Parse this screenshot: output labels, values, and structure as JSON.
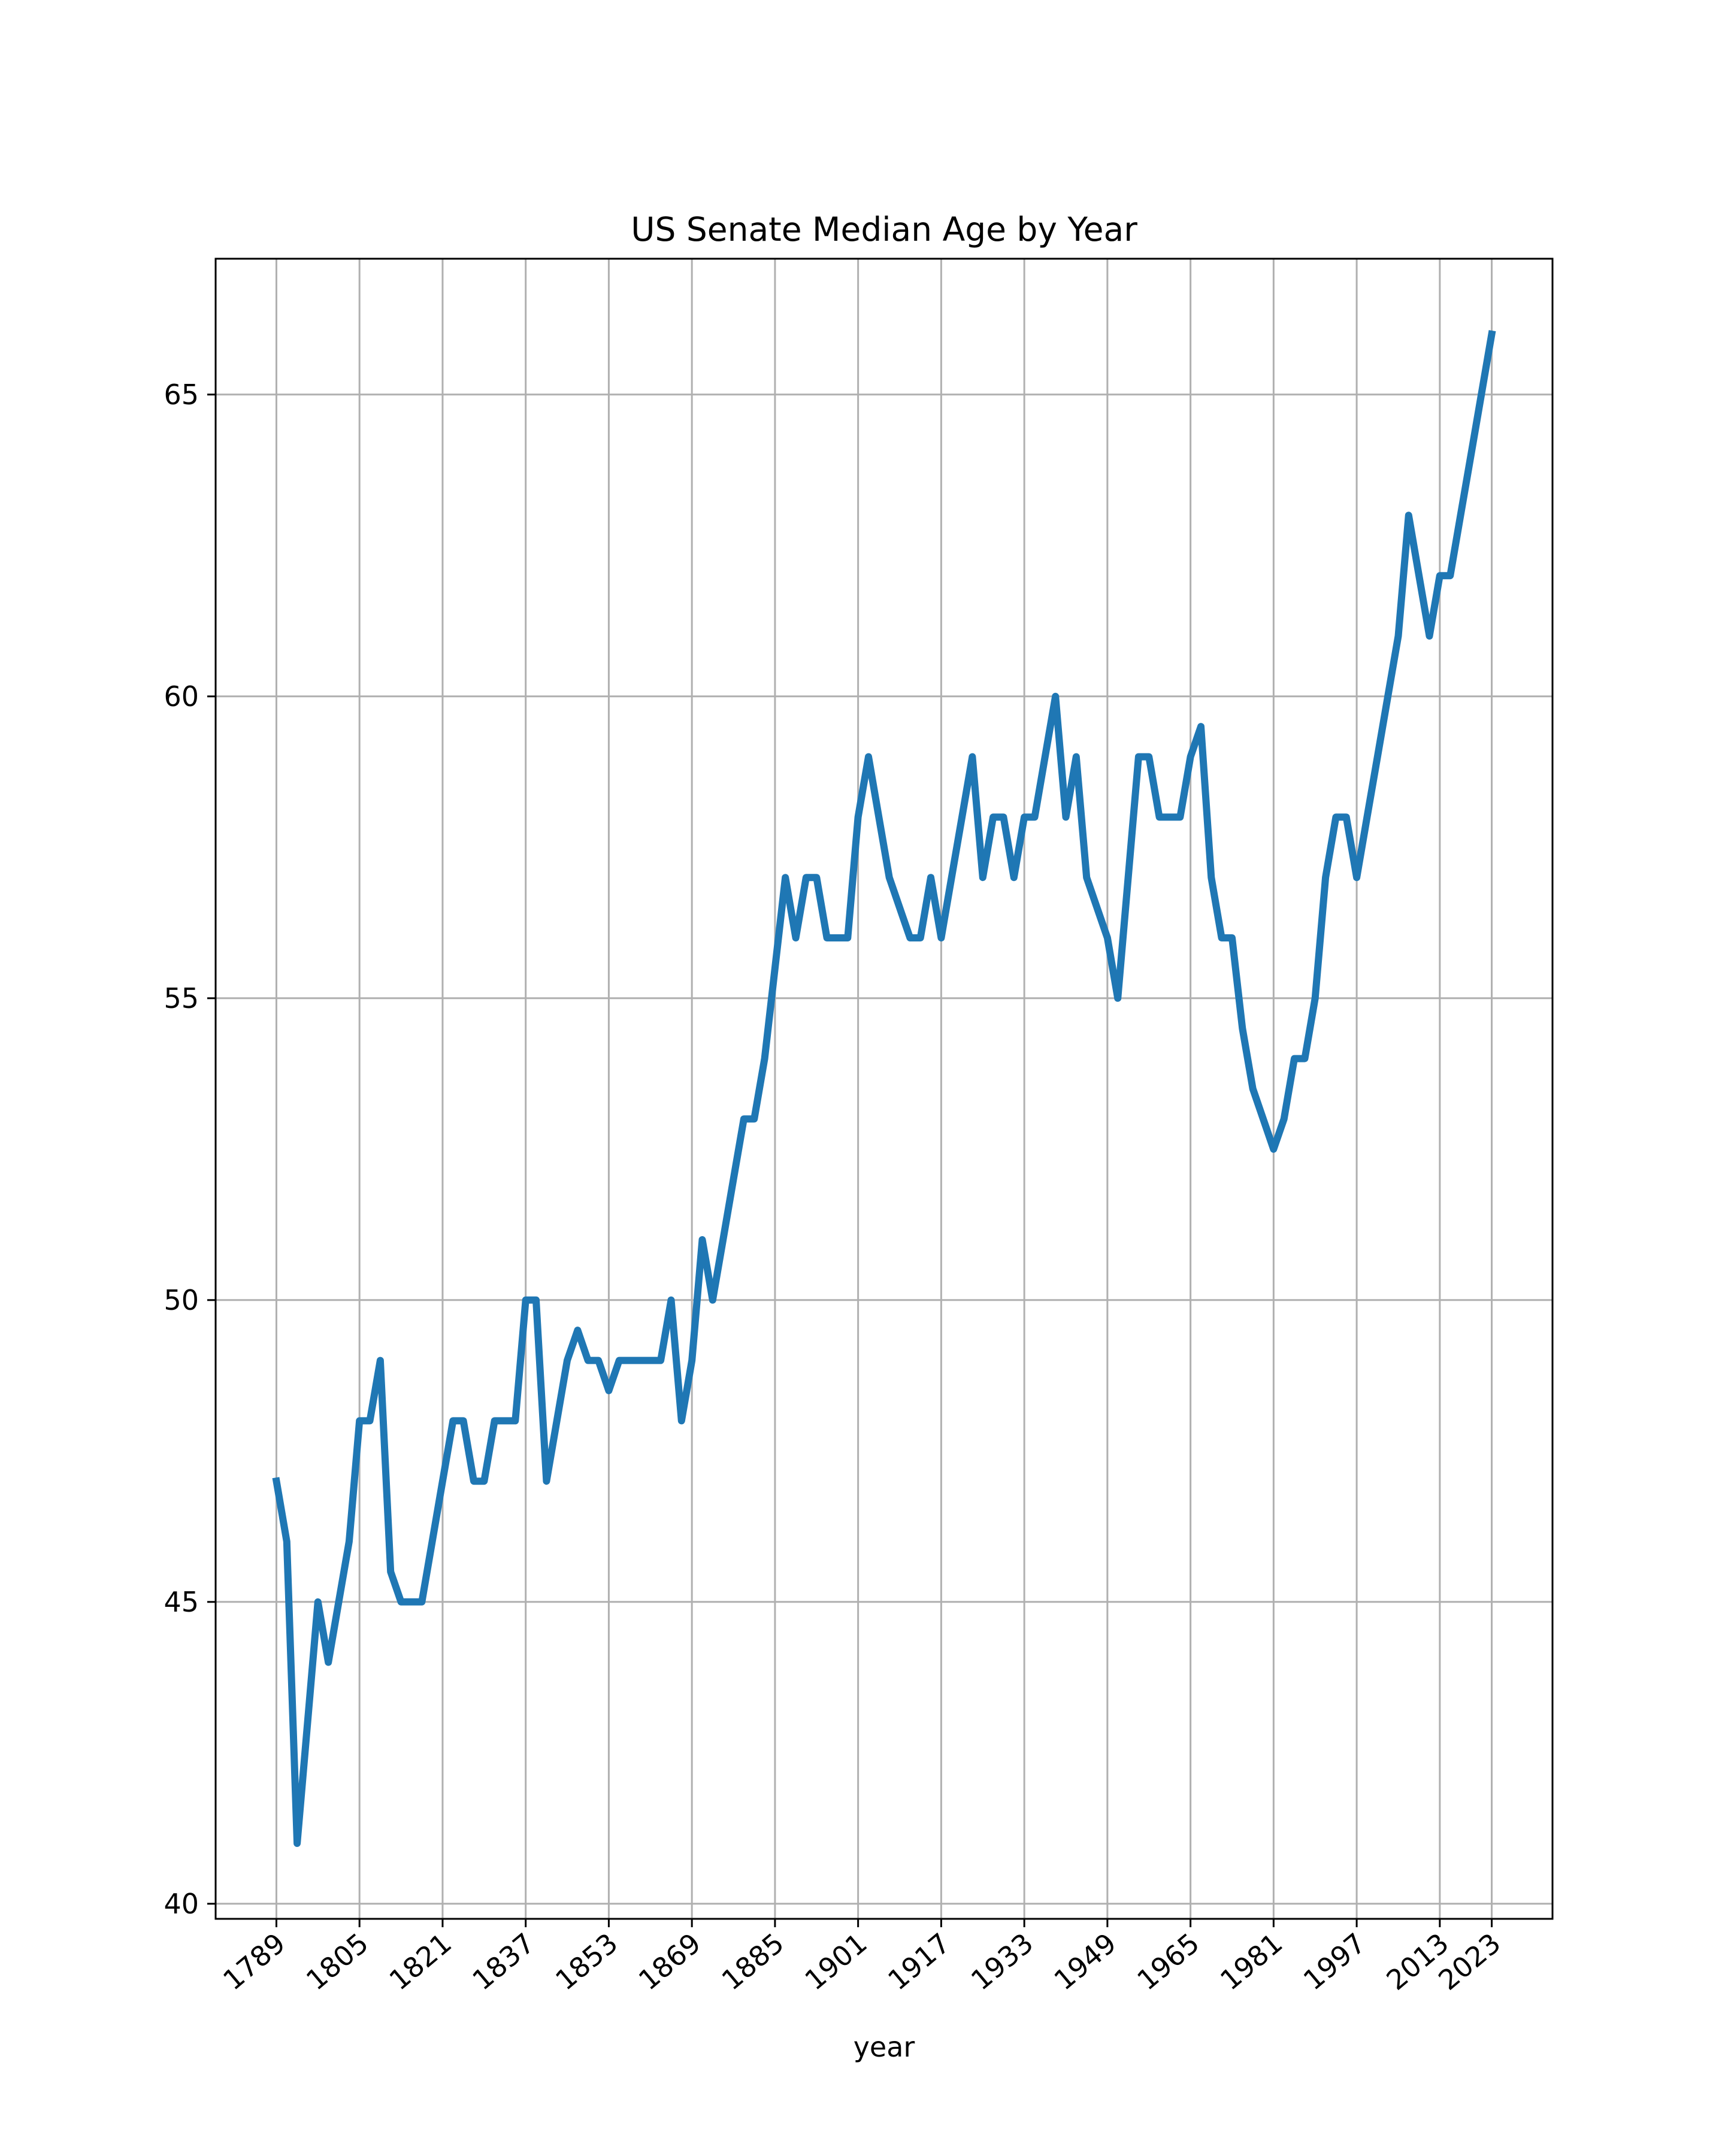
{
  "chart_data": {
    "type": "line",
    "title": "US Senate Median Age by Year",
    "xlabel": "year",
    "ylabel": "",
    "x_ticks": [
      1789,
      1805,
      1821,
      1837,
      1853,
      1869,
      1885,
      1901,
      1917,
      1933,
      1949,
      1965,
      1981,
      1997,
      2013,
      2023
    ],
    "y_ticks": [
      40,
      45,
      50,
      55,
      60,
      65
    ],
    "xlim": [
      1777.3,
      2034.7
    ],
    "ylim": [
      39.75,
      67.25
    ],
    "grid": true,
    "line_color": "#1f77b4",
    "series": [
      {
        "name": "",
        "x": [
          1789,
          1791,
          1793,
          1795,
          1797,
          1799,
          1801,
          1803,
          1805,
          1807,
          1809,
          1811,
          1813,
          1815,
          1817,
          1819,
          1821,
          1823,
          1825,
          1827,
          1829,
          1831,
          1833,
          1835,
          1837,
          1839,
          1841,
          1843,
          1845,
          1847,
          1849,
          1851,
          1853,
          1855,
          1857,
          1859,
          1861,
          1863,
          1865,
          1867,
          1869,
          1871,
          1873,
          1875,
          1877,
          1879,
          1881,
          1883,
          1885,
          1887,
          1889,
          1891,
          1893,
          1895,
          1897,
          1899,
          1901,
          1903,
          1905,
          1907,
          1909,
          1911,
          1913,
          1915,
          1917,
          1919,
          1921,
          1923,
          1925,
          1927,
          1929,
          1931,
          1933,
          1935,
          1937,
          1939,
          1941,
          1943,
          1945,
          1947,
          1949,
          1951,
          1953,
          1955,
          1957,
          1959,
          1961,
          1963,
          1965,
          1967,
          1969,
          1971,
          1973,
          1975,
          1977,
          1979,
          1981,
          1983,
          1985,
          1987,
          1989,
          1991,
          1993,
          1995,
          1997,
          1999,
          2001,
          2003,
          2005,
          2007,
          2009,
          2011,
          2013,
          2015,
          2017,
          2019,
          2021,
          2023
        ],
        "values": [
          47,
          46,
          41,
          43,
          45,
          44,
          45,
          46,
          48,
          48,
          49,
          45.5,
          45,
          45,
          45,
          46,
          47,
          48,
          48,
          47,
          47,
          48,
          48,
          48,
          50,
          50,
          47,
          48,
          49,
          49.5,
          49,
          49,
          48.5,
          49,
          49,
          49,
          49,
          49,
          50,
          48,
          49,
          51,
          50,
          51,
          52,
          53,
          53,
          54,
          55.5,
          57,
          56,
          57,
          57,
          56,
          56,
          56,
          58,
          59,
          58,
          57,
          56.5,
          56,
          56,
          57,
          56,
          57,
          58,
          59,
          57,
          58,
          58,
          57,
          58,
          58,
          59,
          60,
          58,
          59,
          57,
          56.5,
          56,
          55,
          57,
          59,
          59,
          58,
          58,
          58,
          59,
          59.5,
          57,
          56,
          56,
          54.5,
          53.5,
          53,
          52.5,
          53,
          54,
          54,
          55,
          57,
          58,
          58,
          57,
          58,
          59,
          60,
          61,
          63,
          62,
          61,
          62,
          62,
          63,
          64,
          65,
          66
        ]
      }
    ]
  }
}
